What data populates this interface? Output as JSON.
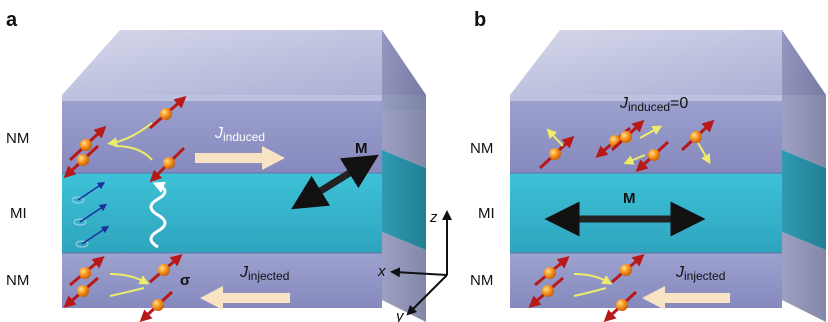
{
  "panels": [
    {
      "id": "a",
      "label": "a",
      "layer_labels": [
        "NM",
        "MI",
        "NM"
      ],
      "current_top": {
        "symbol": "J",
        "subscript": "induced",
        "suffix": ""
      },
      "magnetization": "M",
      "sigma": "σ",
      "current_bottom": {
        "symbol": "J",
        "subscript": "injected"
      }
    },
    {
      "id": "b",
      "label": "b",
      "layer_labels": [
        "NM",
        "MI",
        "NM"
      ],
      "current_top": {
        "symbol": "J",
        "subscript": "induced",
        "suffix": "=0"
      },
      "magnetization": "M",
      "current_bottom": {
        "symbol": "J",
        "subscript": "injected"
      }
    }
  ],
  "axes": {
    "x": "x",
    "y": "y",
    "z": "z"
  },
  "colors": {
    "nm_layer": "#8f94c6",
    "mi_layer": "#3cb3cc",
    "spin_arrow": "#b81818",
    "spin_ball": "#f7941d",
    "current_arrow": "#f8e4c4",
    "magnetization_arrow": "#222222",
    "magnon_wave": "#ffffff",
    "flow_arrow": "#ecec6a"
  }
}
